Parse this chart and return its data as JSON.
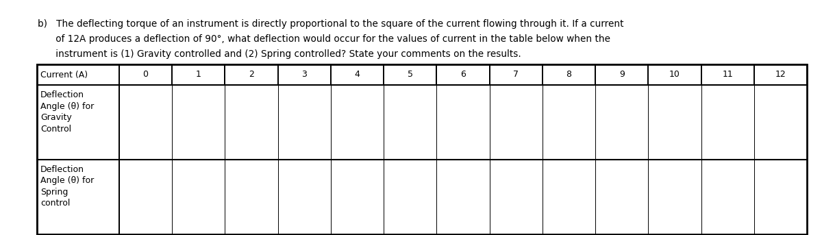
{
  "title_lines": [
    "b)   The deflecting torque of an instrument is directly proportional to the square of the current flowing through it. If a current",
    "      of 12A produces a deflection of 90°, what deflection would occur for the values of current in the table below when the",
    "      instrument is (1) Gravity controlled and (2) Spring controlled? State your comments on the results."
  ],
  "col_header": "Current (A)",
  "col_values": [
    "0",
    "1",
    "2",
    "3",
    "4",
    "5",
    "6",
    "7",
    "8",
    "9",
    "10",
    "11",
    "12"
  ],
  "row1_label_lines": [
    "Deflection",
    "Angle (θ) for",
    "Gravity",
    "Control"
  ],
  "row2_label_lines": [
    "Deflection",
    "Angle (θ) for",
    "Spring",
    "control"
  ],
  "background_color": "#ffffff",
  "border_color": "#000000",
  "text_color": "#000000",
  "font_size": 9.0,
  "title_font_size": 9.8
}
